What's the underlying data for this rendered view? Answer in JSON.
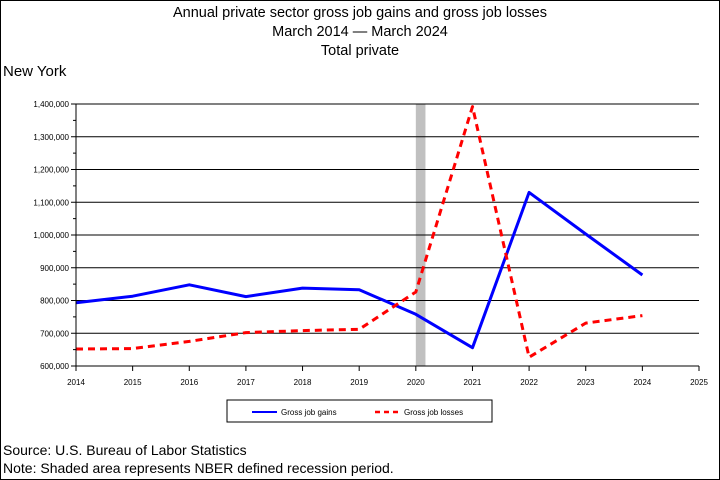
{
  "title_lines": [
    "Annual private sector gross job gains and gross job losses",
    "March 2014 — March 2024",
    "Total private"
  ],
  "region": "New York",
  "source": "Source: U.S. Bureau of Labor Statistics",
  "note": "Note: Shaded area represents NBER defined recession period.",
  "colors": {
    "gains": "#0000ff",
    "losses": "#ff0000",
    "recession": "#c0c0c0",
    "grid": "#000000"
  },
  "chart_data": {
    "type": "line",
    "title": "Annual private sector gross job gains and gross job losses",
    "x_ticks": [
      "2014",
      "2015",
      "2016",
      "2017",
      "2018",
      "2019",
      "2020",
      "2021",
      "2022",
      "2023",
      "2024",
      "2025"
    ],
    "xlim": [
      2014,
      2025
    ],
    "ylim": [
      600000,
      1400000
    ],
    "y_ticks": [
      600000,
      700000,
      800000,
      900000,
      1000000,
      1100000,
      1200000,
      1300000,
      1400000
    ],
    "y_tick_labels": [
      "600,000",
      "700,000",
      "800,000",
      "900,000",
      "1,000,000",
      "1,100,000",
      "1,200,000",
      "1,300,000",
      "1,400,000"
    ],
    "recession": [
      2020.0,
      2020.17
    ],
    "grid": "horizontal",
    "legend_position": "bottom",
    "series": [
      {
        "name": "Gross job gains",
        "style": "solid",
        "x": [
          2014,
          2015,
          2016,
          2017,
          2018,
          2019,
          2020,
          2021,
          2022,
          2023,
          2024
        ],
        "values": [
          793000,
          813000,
          848000,
          812000,
          838000,
          833000,
          758000,
          656000,
          1130000,
          1003000,
          878000
        ]
      },
      {
        "name": "Gross job losses",
        "style": "dashed",
        "x": [
          2014,
          2015,
          2016,
          2017,
          2018,
          2019,
          2020,
          2021,
          2022,
          2023,
          2024
        ],
        "values": [
          652000,
          653000,
          675000,
          702000,
          708000,
          712000,
          826000,
          1392000,
          627000,
          731000,
          754000
        ]
      }
    ]
  }
}
